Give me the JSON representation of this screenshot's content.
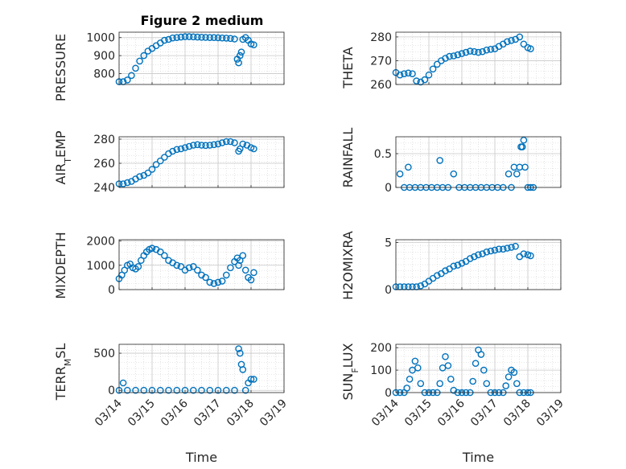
{
  "figure": {
    "title": "Figure 2 medium",
    "marker_color": "#0072bd",
    "grid": "on (major + minor dotted)"
  },
  "chart_data": [
    {
      "type": "scatter",
      "ylabel": "PRESSURE",
      "xlabel": "",
      "title": "Figure 2 medium",
      "xlim": [
        "03/14",
        "03/19"
      ],
      "ylim": [
        740,
        1030
      ],
      "yticks": [
        "800",
        "900",
        "1000"
      ],
      "xticks": [],
      "x": [
        "03/14 00:00",
        "03/14 03:00",
        "03/14 06:00",
        "03/14 09:00",
        "03/14 12:00",
        "03/14 15:00",
        "03/14 18:00",
        "03/14 21:00",
        "03/15 00:00",
        "03/15 03:00",
        "03/15 06:00",
        "03/15 09:00",
        "03/15 12:00",
        "03/15 15:00",
        "03/15 18:00",
        "03/15 21:00",
        "03/16 00:00",
        "03/16 03:00",
        "03/16 06:00",
        "03/16 09:00",
        "03/16 12:00",
        "03/16 15:00",
        "03/16 18:00",
        "03/16 21:00",
        "03/17 00:00",
        "03/17 03:00",
        "03/17 06:00",
        "03/17 09:00",
        "03/17 12:00",
        "03/17 14:00",
        "03/17 15:00",
        "03/17 16:00",
        "03/17 17:00",
        "03/17 18:00",
        "03/17 20:00",
        "03/17 22:00",
        "03/18 00:00",
        "03/18 02:00"
      ],
      "y": [
        755,
        755,
        765,
        790,
        830,
        870,
        900,
        925,
        940,
        955,
        970,
        985,
        990,
        998,
        1000,
        1003,
        1005,
        1005,
        1004,
        1003,
        1002,
        1001,
        1000,
        1000,
        999,
        998,
        997,
        995,
        992,
        880,
        860,
        900,
        920,
        990,
        1000,
        985,
        965,
        960
      ]
    },
    {
      "type": "scatter",
      "ylabel": "THETA",
      "xlabel": "",
      "xlim": [
        "03/14",
        "03/19"
      ],
      "ylim": [
        260,
        282
      ],
      "yticks": [
        "260",
        "270",
        "280"
      ],
      "xticks": [],
      "x": [
        "03/14 00:00",
        "03/14 03:00",
        "03/14 06:00",
        "03/14 09:00",
        "03/14 12:00",
        "03/14 15:00",
        "03/14 18:00",
        "03/14 21:00",
        "03/15 00:00",
        "03/15 03:00",
        "03/15 06:00",
        "03/15 09:00",
        "03/15 12:00",
        "03/15 15:00",
        "03/15 18:00",
        "03/15 21:00",
        "03/16 00:00",
        "03/16 03:00",
        "03/16 06:00",
        "03/16 09:00",
        "03/16 12:00",
        "03/16 15:00",
        "03/16 18:00",
        "03/16 21:00",
        "03/17 00:00",
        "03/17 03:00",
        "03/17 06:00",
        "03/17 09:00",
        "03/17 12:00",
        "03/17 15:00",
        "03/17 18:00",
        "03/17 21:00",
        "03/18 00:00",
        "03/18 02:00"
      ],
      "y": [
        265,
        264,
        264.5,
        264.8,
        264.5,
        261.5,
        261,
        262,
        264,
        266.5,
        268.5,
        270,
        271,
        271.8,
        272,
        272.5,
        273,
        273.5,
        274,
        273.8,
        273.5,
        273.8,
        274.5,
        274.8,
        275,
        276,
        277,
        278,
        278.5,
        279,
        280,
        277,
        275.5,
        275
      ]
    },
    {
      "type": "scatter",
      "ylabel": "AIR_TEMP",
      "xlabel": "",
      "xlim": [
        "03/14",
        "03/19"
      ],
      "ylim": [
        240,
        282
      ],
      "yticks": [
        "240",
        "260",
        "280"
      ],
      "xticks": [],
      "x": [
        "03/14 00:00",
        "03/14 03:00",
        "03/14 06:00",
        "03/14 09:00",
        "03/14 12:00",
        "03/14 15:00",
        "03/14 18:00",
        "03/14 21:00",
        "03/15 00:00",
        "03/15 03:00",
        "03/15 06:00",
        "03/15 09:00",
        "03/15 12:00",
        "03/15 15:00",
        "03/15 18:00",
        "03/15 21:00",
        "03/16 00:00",
        "03/16 03:00",
        "03/16 06:00",
        "03/16 09:00",
        "03/16 12:00",
        "03/16 15:00",
        "03/16 18:00",
        "03/16 21:00",
        "03/17 00:00",
        "03/17 03:00",
        "03/17 06:00",
        "03/17 09:00",
        "03/17 12:00",
        "03/17 15:00",
        "03/17 16:00",
        "03/17 18:00",
        "03/17 21:00",
        "03/18 00:00",
        "03/18 02:00"
      ],
      "y": [
        243,
        243,
        244,
        245,
        247,
        249,
        250,
        252,
        255,
        259,
        262,
        265,
        268,
        270,
        271.5,
        272,
        273,
        274,
        275,
        275.5,
        275,
        274.8,
        275,
        275.5,
        276,
        277,
        278,
        278,
        277,
        270,
        272,
        276,
        275,
        273,
        272
      ]
    },
    {
      "type": "scatter",
      "ylabel": "RAINFALL",
      "xlabel": "",
      "xlim": [
        "03/14",
        "03/19"
      ],
      "ylim": [
        0,
        0.75
      ],
      "yticks": [
        "0",
        "0.5"
      ],
      "xticks": [],
      "x": [
        "03/14 03:00",
        "03/14 06:00",
        "03/14 09:00",
        "03/14 10:00",
        "03/14 14:00",
        "03/14 18:00",
        "03/14 22:00",
        "03/15 02:00",
        "03/15 06:00",
        "03/15 08:00",
        "03/15 10:00",
        "03/15 14:00",
        "03/15 18:00",
        "03/15 22:00",
        "03/16 02:00",
        "03/16 06:00",
        "03/16 10:00",
        "03/16 14:00",
        "03/16 18:00",
        "03/16 22:00",
        "03/17 02:00",
        "03/17 06:00",
        "03/17 10:00",
        "03/17 12:00",
        "03/17 14:00",
        "03/17 16:00",
        "03/17 18:00",
        "03/17 19:00",
        "03/17 20:00",
        "03/17 21:00",
        "03/17 22:00",
        "03/18 00:00",
        "03/18 02:00",
        "03/18 04:00"
      ],
      "y": [
        0.2,
        0,
        0.3,
        0,
        0,
        0,
        0,
        0,
        0,
        0.4,
        0,
        0,
        0.2,
        0,
        0,
        0,
        0,
        0,
        0,
        0,
        0,
        0,
        0.2,
        0,
        0.3,
        0.2,
        0.3,
        0.6,
        0.6,
        0.7,
        0.3,
        0,
        0,
        0
      ]
    },
    {
      "type": "scatter",
      "ylabel": "MIXDEPTH",
      "xlabel": "",
      "xlim": [
        "03/14",
        "03/19"
      ],
      "ylim": [
        0,
        2050
      ],
      "yticks": [
        "0",
        "1000",
        "2000"
      ],
      "xticks": [],
      "x": [
        "03/14 00:00",
        "03/14 02:00",
        "03/14 04:00",
        "03/14 06:00",
        "03/14 08:00",
        "03/14 10:00",
        "03/14 12:00",
        "03/14 14:00",
        "03/14 16:00",
        "03/14 18:00",
        "03/14 20:00",
        "03/14 22:00",
        "03/15 00:00",
        "03/15 03:00",
        "03/15 06:00",
        "03/15 09:00",
        "03/15 12:00",
        "03/15 15:00",
        "03/15 18:00",
        "03/15 21:00",
        "03/16 00:00",
        "03/16 03:00",
        "03/16 06:00",
        "03/16 09:00",
        "03/16 12:00",
        "03/16 15:00",
        "03/16 18:00",
        "03/16 21:00",
        "03/17 00:00",
        "03/17 03:00",
        "03/17 06:00",
        "03/17 09:00",
        "03/17 12:00",
        "03/17 14:00",
        "03/17 15:00",
        "03/17 16:00",
        "03/17 18:00",
        "03/17 20:00",
        "03/17 22:00",
        "03/18 00:00",
        "03/18 02:00"
      ],
      "y": [
        450,
        600,
        800,
        1000,
        1050,
        900,
        850,
        950,
        1200,
        1400,
        1550,
        1650,
        1700,
        1650,
        1550,
        1400,
        1200,
        1100,
        1000,
        950,
        800,
        900,
        950,
        800,
        600,
        500,
        300,
        250,
        300,
        350,
        600,
        900,
        1150,
        1300,
        1000,
        1200,
        1400,
        800,
        500,
        400,
        700
      ]
    },
    {
      "type": "scatter",
      "ylabel": "H2OMIXRA",
      "xlabel": "",
      "xlim": [
        "03/14",
        "03/19"
      ],
      "ylim": [
        0,
        5.3
      ],
      "yticks": [
        "0",
        "5"
      ],
      "xticks": [],
      "x": [
        "03/14 00:00",
        "03/14 03:00",
        "03/14 06:00",
        "03/14 09:00",
        "03/14 12:00",
        "03/14 15:00",
        "03/14 18:00",
        "03/14 21:00",
        "03/15 00:00",
        "03/15 03:00",
        "03/15 06:00",
        "03/15 09:00",
        "03/15 12:00",
        "03/15 15:00",
        "03/15 18:00",
        "03/15 21:00",
        "03/16 00:00",
        "03/16 03:00",
        "03/16 06:00",
        "03/16 09:00",
        "03/16 12:00",
        "03/16 15:00",
        "03/16 18:00",
        "03/16 21:00",
        "03/17 00:00",
        "03/17 03:00",
        "03/17 06:00",
        "03/17 09:00",
        "03/17 12:00",
        "03/17 15:00",
        "03/17 18:00",
        "03/17 21:00",
        "03/18 00:00",
        "03/18 02:00"
      ],
      "y": [
        0.3,
        0.3,
        0.3,
        0.3,
        0.3,
        0.3,
        0.4,
        0.6,
        0.9,
        1.2,
        1.5,
        1.7,
        2.0,
        2.2,
        2.5,
        2.6,
        2.8,
        3.0,
        3.3,
        3.5,
        3.7,
        3.8,
        4.0,
        4.1,
        4.2,
        4.3,
        4.3,
        4.4,
        4.5,
        4.6,
        3.5,
        3.8,
        3.7,
        3.6
      ]
    },
    {
      "type": "scatter",
      "ylabel": "TERR_MSL",
      "xlabel": "Time",
      "xlim": [
        "03/14",
        "03/19"
      ],
      "ylim": [
        -30,
        620
      ],
      "yticks": [
        "0",
        "500"
      ],
      "xticks": [
        "03/14",
        "03/15",
        "03/16",
        "03/17",
        "03/18",
        "03/19"
      ],
      "x": [
        "03/14 00:00",
        "03/14 03:00",
        "03/14 06:00",
        "03/14 12:00",
        "03/14 18:00",
        "03/15 00:00",
        "03/15 06:00",
        "03/15 12:00",
        "03/15 18:00",
        "03/16 00:00",
        "03/16 06:00",
        "03/16 12:00",
        "03/16 18:00",
        "03/17 00:00",
        "03/17 06:00",
        "03/17 12:00",
        "03/17 15:00",
        "03/17 16:00",
        "03/17 17:00",
        "03/17 18:00",
        "03/17 20:00",
        "03/17 22:00",
        "03/18 00:00",
        "03/18 02:00"
      ],
      "y": [
        0,
        100,
        0,
        0,
        0,
        0,
        0,
        0,
        0,
        0,
        0,
        0,
        0,
        0,
        0,
        0,
        560,
        500,
        350,
        280,
        0,
        100,
        150,
        150
      ]
    },
    {
      "type": "scatter",
      "ylabel": "SUN_FLUX",
      "xlabel": "Time",
      "xlim": [
        "03/14",
        "03/19"
      ],
      "ylim": [
        0,
        215
      ],
      "yticks": [
        "0",
        "100",
        "200"
      ],
      "xticks": [
        "03/14",
        "03/15",
        "03/16",
        "03/17",
        "03/18",
        "03/19"
      ],
      "x": [
        "03/14 00:00",
        "03/14 03:00",
        "03/14 06:00",
        "03/14 08:00",
        "03/14 10:00",
        "03/14 12:00",
        "03/14 14:00",
        "03/14 16:00",
        "03/14 18:00",
        "03/14 21:00",
        "03/15 00:00",
        "03/15 03:00",
        "03/15 06:00",
        "03/15 08:00",
        "03/15 10:00",
        "03/15 12:00",
        "03/15 14:00",
        "03/15 16:00",
        "03/15 18:00",
        "03/15 21:00",
        "03/16 00:00",
        "03/16 03:00",
        "03/16 06:00",
        "03/16 08:00",
        "03/16 10:00",
        "03/16 12:00",
        "03/16 14:00",
        "03/16 16:00",
        "03/16 18:00",
        "03/16 21:00",
        "03/17 00:00",
        "03/17 03:00",
        "03/17 06:00",
        "03/17 08:00",
        "03/17 10:00",
        "03/17 12:00",
        "03/17 14:00",
        "03/17 16:00",
        "03/17 18:00",
        "03/17 21:00",
        "03/18 00:00",
        "03/18 02:00"
      ],
      "y": [
        0,
        0,
        0,
        20,
        60,
        100,
        140,
        110,
        40,
        0,
        0,
        0,
        0,
        40,
        110,
        160,
        120,
        60,
        10,
        0,
        0,
        0,
        0,
        50,
        130,
        190,
        170,
        100,
        40,
        0,
        0,
        0,
        0,
        30,
        70,
        100,
        90,
        40,
        0,
        0,
        0,
        0
      ]
    }
  ]
}
